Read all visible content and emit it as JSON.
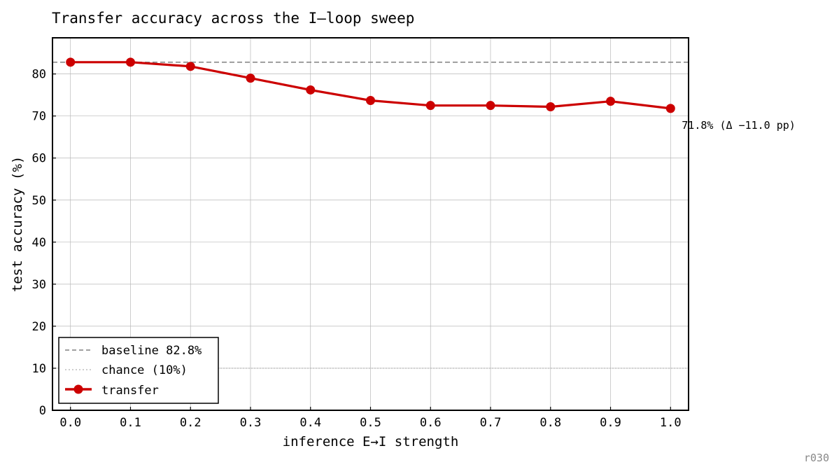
{
  "chart_data": {
    "type": "line",
    "title": "Transfer accuracy across the I–loop sweep",
    "xlabel": "inference E→I strength",
    "ylabel": "test accuracy (%)",
    "x": [
      0.0,
      0.1,
      0.2,
      0.3,
      0.4,
      0.5,
      0.6,
      0.7,
      0.8,
      0.9,
      1.0
    ],
    "x_tick_labels": [
      "0.0",
      "0.1",
      "0.2",
      "0.3",
      "0.4",
      "0.5",
      "0.6",
      "0.7",
      "0.8",
      "0.9",
      "1.0"
    ],
    "y_ticks": [
      0,
      10,
      20,
      30,
      40,
      50,
      60,
      70,
      80
    ],
    "xlim": [
      -0.03,
      1.03
    ],
    "ylim": [
      0,
      88.6
    ],
    "grid": true,
    "legend_position": "lower-left",
    "series": [
      {
        "name": "transfer",
        "color": "#cc0000",
        "marker": "circle",
        "values": [
          82.8,
          82.8,
          81.8,
          79.0,
          76.2,
          73.7,
          72.5,
          72.5,
          72.2,
          73.5,
          71.8
        ]
      }
    ],
    "reference_lines": [
      {
        "name": "baseline 82.8%",
        "value": 82.8,
        "style": "dashed",
        "color": "#808080"
      },
      {
        "name": "chance (10%)",
        "value": 10,
        "style": "dotted",
        "color": "#b0b0b0"
      }
    ],
    "annotation": {
      "text": "71.8%  (Δ −11.0 pp)",
      "x": 1.0,
      "y": 71.8
    },
    "tag": "r030"
  }
}
